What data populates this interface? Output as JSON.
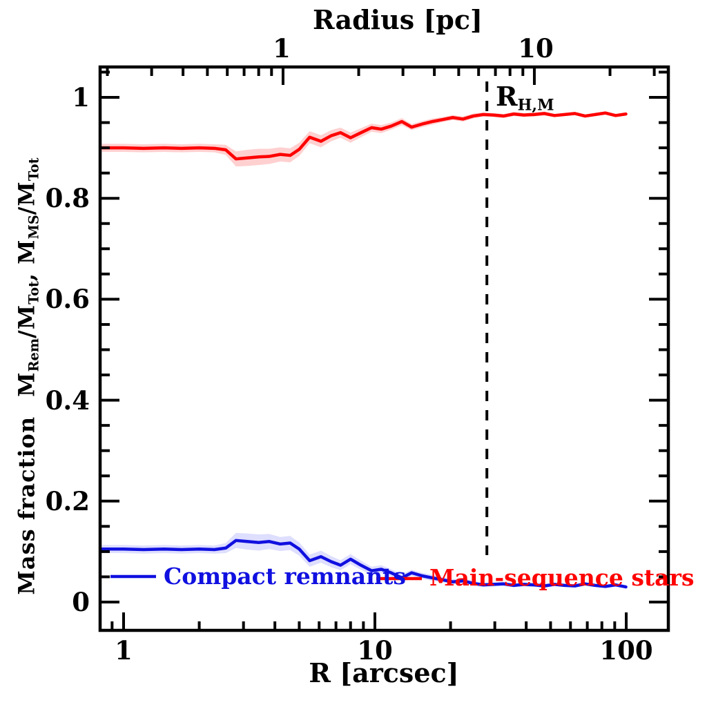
{
  "titles": {
    "top_axis": "Radius [pc]",
    "bottom_axis": "R [arcsec]"
  },
  "ylabel": {
    "text1": "Mass fraction",
    "m1": "M",
    "sub1": "Rem",
    "t2": "/M",
    "sub2": "Tot",
    "t3": ",",
    "m2": "M",
    "sub3": "MS",
    "t4": "/M",
    "sub4": "Tot"
  },
  "axes": {
    "x_tick_labels": [
      "1",
      "10",
      "100"
    ],
    "x_major": [
      1,
      10,
      100
    ],
    "x_minor": [
      0.9,
      2,
      3,
      4,
      5,
      6,
      7,
      8,
      9,
      20,
      30,
      40,
      50,
      60,
      70,
      80,
      90
    ],
    "top_tick_labels": [
      "1",
      "10"
    ],
    "top_major_pc": [
      1,
      10
    ],
    "top_minor_pc": [
      0.2,
      0.3,
      0.4,
      0.5,
      0.6,
      0.7,
      0.8,
      0.9,
      2,
      3,
      4,
      5,
      6,
      7,
      8,
      9,
      20,
      30
    ],
    "pc_to_arcsec": 4.31,
    "y_tick_labels": [
      "1",
      "0.8",
      "0.6",
      "0.4",
      "0.2",
      "0"
    ],
    "y_major": [
      0,
      0.2,
      0.4,
      0.6,
      0.8,
      1.0
    ],
    "y_minor": [
      0.05,
      0.1,
      0.15,
      0.25,
      0.3,
      0.35,
      0.45,
      0.5,
      0.55,
      0.65,
      0.7,
      0.75,
      0.85,
      0.9,
      0.95,
      1.05
    ]
  },
  "annotation": {
    "label_main": "R",
    "label_sub": "H,M",
    "r_arcsec": 27.9
  },
  "legend": {
    "items": [
      {
        "label": "Compact remnants",
        "color": "#1010e0"
      },
      {
        "label": "Main-sequence stars",
        "color": "#ff0000"
      }
    ]
  },
  "colors": {
    "ms_line": "#ff0000",
    "ms_band": "rgba(255,40,40,0.22)",
    "rem_line": "#1010e0",
    "rem_band": "rgba(70,70,255,0.18)",
    "frame": "#000000",
    "dashed": "#000000"
  },
  "chart_data": {
    "type": "line",
    "x_scale": "log",
    "xlabel": "R [arcsec]",
    "xlabel_top": "Radius [pc]",
    "ylabel": "Mass fraction  M_Rem/M_Tot, M_MS/M_Tot",
    "x_range_arcsec": [
      0.81,
      148
    ],
    "y_range": [
      -0.055,
      1.056
    ],
    "grid": false,
    "legend_position": "inside bottom",
    "annotation_dashed_line_arcsec": 27.9,
    "r_arcsec": [
      0.82,
      1.0,
      1.2,
      1.45,
      1.7,
      2.0,
      2.3,
      2.55,
      2.8,
      3.1,
      3.45,
      3.8,
      4.2,
      4.6,
      5.0,
      5.5,
      6.1,
      6.7,
      7.3,
      8.0,
      8.8,
      9.7,
      10.6,
      11.6,
      12.8,
      14.0,
      15.4,
      16.9,
      18.6,
      20.4,
      22.4,
      24.6,
      27.0,
      29.6,
      32.5,
      35.7,
      39.2,
      43.0,
      47.2,
      51.8,
      56.9,
      62.5,
      68.6,
      75.3,
      82.7,
      90.8,
      99.7
    ],
    "series": [
      {
        "name": "Main-sequence stars",
        "values": [
          0.9,
          0.9,
          0.899,
          0.9,
          0.899,
          0.9,
          0.899,
          0.896,
          0.878,
          0.88,
          0.882,
          0.883,
          0.887,
          0.885,
          0.897,
          0.921,
          0.913,
          0.924,
          0.93,
          0.92,
          0.93,
          0.94,
          0.937,
          0.943,
          0.952,
          0.941,
          0.947,
          0.952,
          0.956,
          0.96,
          0.957,
          0.963,
          0.966,
          0.965,
          0.963,
          0.967,
          0.965,
          0.966,
          0.968,
          0.964,
          0.966,
          0.968,
          0.963,
          0.966,
          0.969,
          0.964,
          0.967
        ],
        "err": [
          0.008,
          0.008,
          0.008,
          0.008,
          0.008,
          0.008,
          0.008,
          0.01,
          0.015,
          0.016,
          0.016,
          0.015,
          0.014,
          0.014,
          0.013,
          0.012,
          0.012,
          0.011,
          0.01,
          0.01,
          0.009,
          0.008,
          0.008,
          0.007,
          0.007,
          0.006,
          0.006,
          0.006,
          0.005,
          0.005,
          0.005,
          0.005,
          0.004,
          0.004,
          0.004,
          0.004,
          0.004,
          0.004,
          0.004,
          0.003,
          0.003,
          0.003,
          0.003,
          0.003,
          0.003,
          0.003,
          0.003
        ]
      },
      {
        "name": "Compact remnants",
        "values": [
          0.105,
          0.105,
          0.104,
          0.105,
          0.104,
          0.105,
          0.104,
          0.107,
          0.122,
          0.12,
          0.118,
          0.12,
          0.115,
          0.117,
          0.105,
          0.082,
          0.09,
          0.08,
          0.073,
          0.085,
          0.073,
          0.062,
          0.065,
          0.058,
          0.048,
          0.058,
          0.052,
          0.048,
          0.044,
          0.04,
          0.042,
          0.037,
          0.034,
          0.035,
          0.036,
          0.033,
          0.035,
          0.034,
          0.032,
          0.035,
          0.033,
          0.032,
          0.036,
          0.033,
          0.031,
          0.034,
          0.03
        ],
        "err": [
          0.008,
          0.008,
          0.008,
          0.008,
          0.008,
          0.008,
          0.008,
          0.01,
          0.015,
          0.016,
          0.016,
          0.015,
          0.014,
          0.014,
          0.013,
          0.012,
          0.012,
          0.011,
          0.01,
          0.01,
          0.009,
          0.008,
          0.008,
          0.007,
          0.007,
          0.006,
          0.006,
          0.006,
          0.005,
          0.005,
          0.005,
          0.005,
          0.004,
          0.004,
          0.004,
          0.004,
          0.004,
          0.004,
          0.004,
          0.003,
          0.003,
          0.003,
          0.003,
          0.003,
          0.003,
          0.003,
          0.003
        ]
      }
    ]
  }
}
